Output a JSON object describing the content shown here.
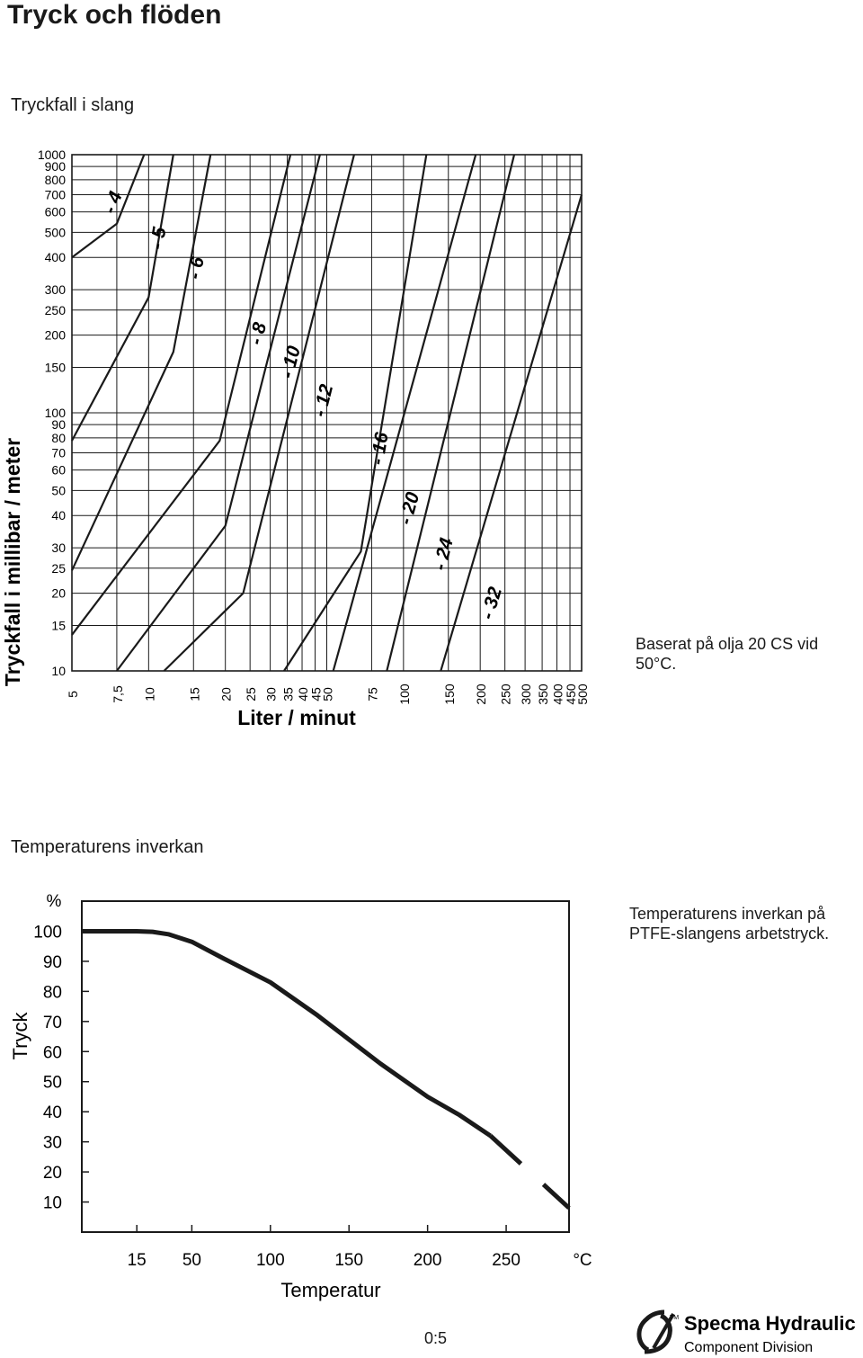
{
  "page": {
    "title": "Tryck och flöden",
    "section1_title": "Tryckfall i slang",
    "section2_title": "Temperaturens inverkan",
    "note1": "Baserat på olja 20 CS vid 50°C.",
    "note2": "Temperaturens inverkan på PTFE-slangens arbetstryck.",
    "page_code": "0:5",
    "brand": {
      "name": "Specma Hydraulic",
      "division": "Component Division",
      "tm": "TM"
    }
  },
  "chart_data": [
    {
      "type": "line",
      "scale": "log-log",
      "xlabel": "Liter / minut",
      "ylabel": "Tryckfall i millibar / meter",
      "xlim": [
        5,
        500
      ],
      "ylim": [
        10,
        1000
      ],
      "grid": true,
      "x_ticks": [
        "5",
        "7,5",
        "10",
        "15",
        "20",
        "25",
        "30",
        "35",
        "40",
        "45",
        "50",
        "75",
        "100",
        "150",
        "200",
        "250",
        "300",
        "350",
        "400",
        "450",
        "500"
      ],
      "x_tick_values": [
        5,
        7.5,
        10,
        15,
        20,
        25,
        30,
        35,
        40,
        45,
        50,
        75,
        100,
        150,
        200,
        250,
        300,
        350,
        400,
        450,
        500
      ],
      "y_ticks": [
        "10",
        "15",
        "20",
        "25",
        "30",
        "40",
        "50",
        "60",
        "70",
        "80",
        "90",
        "100",
        "150",
        "200",
        "250",
        "300",
        "400",
        "500",
        "600",
        "700",
        "800",
        "900",
        "1000"
      ],
      "y_tick_values": [
        10,
        15,
        20,
        25,
        30,
        40,
        50,
        60,
        70,
        80,
        90,
        100,
        150,
        200,
        250,
        300,
        400,
        500,
        600,
        700,
        800,
        900,
        1000
      ],
      "series": [
        {
          "name": "- 4",
          "label_at": [
            7.6,
            640
          ],
          "points": [
            [
              5,
              400
            ],
            [
              7.5,
              540
            ],
            [
              9.6,
              1000
            ]
          ]
        },
        {
          "name": "- 5",
          "label_at": [
            11.5,
            470
          ],
          "points": [
            [
              5,
              78
            ],
            [
              10,
              280
            ],
            [
              12.5,
              1000
            ]
          ]
        },
        {
          "name": "- 6",
          "label_at": [
            16.2,
            360
          ],
          "points": [
            [
              5,
              24.5
            ],
            [
              12.5,
              172
            ],
            [
              17.5,
              1000
            ]
          ]
        },
        {
          "name": "- 8",
          "label_at": [
            28.3,
            200
          ],
          "points": [
            [
              5,
              13.8
            ],
            [
              19,
              78
            ],
            [
              36,
              1000
            ]
          ]
        },
        {
          "name": "- 10",
          "label_at": [
            38,
            155
          ],
          "points": [
            [
              7.5,
              10
            ],
            [
              20,
              36.5
            ],
            [
              47,
              1000
            ]
          ]
        },
        {
          "name": "- 12",
          "label_at": [
            51,
            110
          ],
          "points": [
            [
              11.5,
              10
            ],
            [
              23.5,
              20
            ],
            [
              64,
              1000
            ]
          ]
        },
        {
          "name": "- 16",
          "label_at": [
            85,
            72
          ],
          "points": [
            [
              34,
              10
            ],
            [
              68,
              29
            ],
            [
              123,
              1000
            ]
          ]
        },
        {
          "name": "- 20",
          "label_at": [
            111,
            42
          ],
          "points": [
            [
              53,
              10
            ],
            [
              192,
              1000
            ]
          ]
        },
        {
          "name": "- 24",
          "label_at": [
            151,
            28
          ],
          "points": [
            [
              86,
              10
            ],
            [
              272,
              1000
            ]
          ]
        },
        {
          "name": "- 32",
          "label_at": [
            233,
            18
          ],
          "points": [
            [
              140,
              10
            ],
            [
              500,
              700
            ]
          ]
        }
      ]
    },
    {
      "type": "line",
      "xlabel": "Temperatur",
      "ylabel": "Tryck",
      "y_unit_label": "%",
      "x_unit_label": "°C",
      "xlim": [
        -20,
        290
      ],
      "ylim": [
        0,
        110
      ],
      "grid": false,
      "x_ticks": [
        "15",
        "50",
        "100",
        "150",
        "200",
        "250"
      ],
      "x_tick_values": [
        15,
        50,
        100,
        150,
        200,
        250
      ],
      "y_ticks": [
        "100",
        "90",
        "80",
        "70",
        "60",
        "50",
        "40",
        "30",
        "20",
        "10"
      ],
      "y_tick_values": [
        100,
        90,
        80,
        70,
        60,
        50,
        40,
        30,
        20,
        10
      ],
      "series": [
        {
          "style": "solid",
          "points": [
            [
              -20,
              100
            ],
            [
              0,
              100
            ],
            [
              15,
              100
            ],
            [
              25,
              99.8
            ],
            [
              35,
              99
            ],
            [
              50,
              96.5
            ],
            [
              70,
              91
            ],
            [
              100,
              83
            ],
            [
              130,
              72
            ],
            [
              150,
              64
            ],
            [
              170,
              56
            ],
            [
              200,
              45
            ],
            [
              220,
              39
            ],
            [
              240,
              32
            ]
          ]
        },
        {
          "style": "dashed",
          "points": [
            [
              240,
              32
            ],
            [
              290,
              8
            ]
          ]
        }
      ]
    }
  ]
}
